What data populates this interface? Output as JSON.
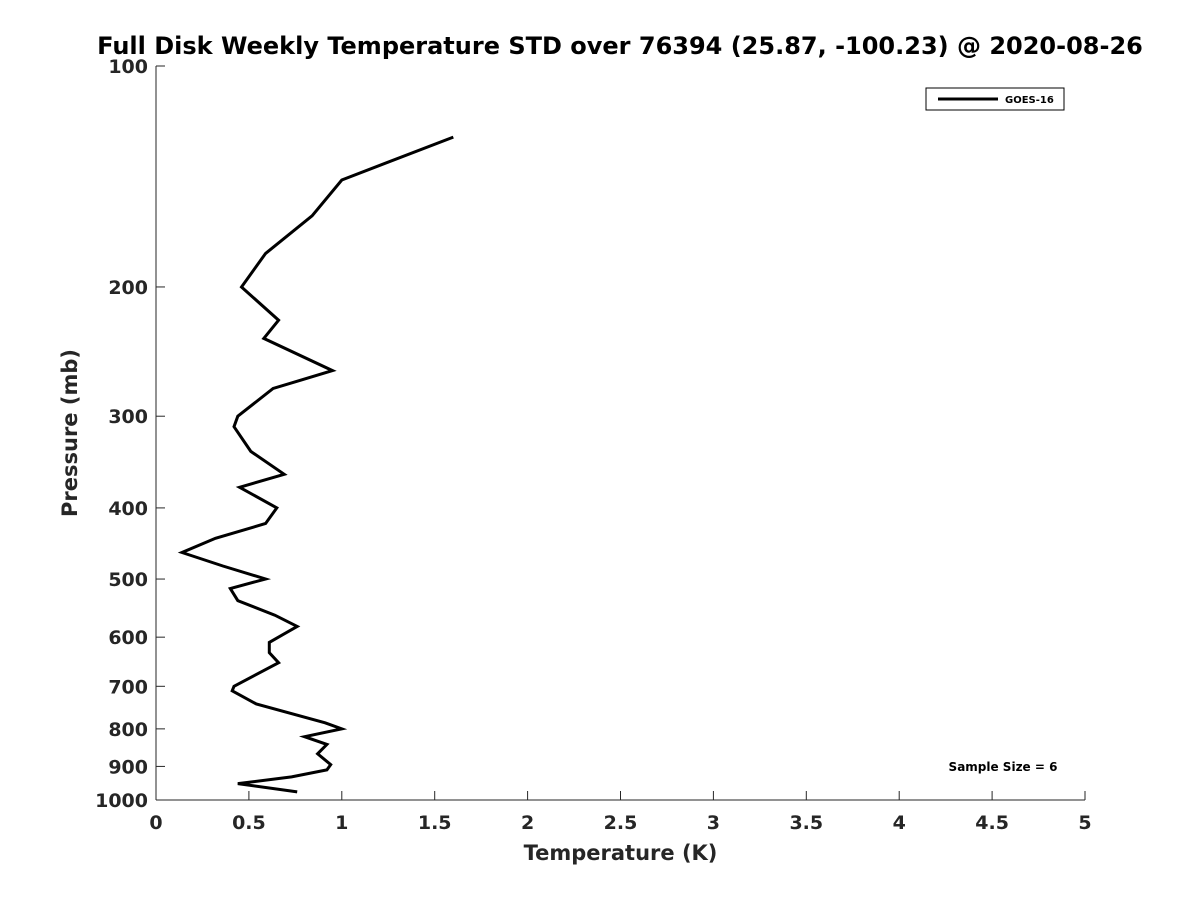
{
  "chart_data": {
    "type": "line",
    "title": "Full Disk Weekly Temperature STD over 76394 (25.87, -100.23) @ 2020-08-26",
    "xlabel": "Temperature (K)",
    "ylabel": "Pressure (mb)",
    "xlim": [
      0,
      5
    ],
    "ylim": [
      1000,
      100
    ],
    "yscale": "log",
    "y_reversed": true,
    "grid": false,
    "legend_position": "top-right",
    "x_ticks": [
      "0",
      "0.5",
      "1",
      "1.5",
      "2",
      "2.5",
      "3",
      "3.5",
      "4",
      "4.5",
      "5"
    ],
    "y_ticks": [
      "100",
      "200",
      "300",
      "400",
      "500",
      "600",
      "700",
      "800",
      "900",
      "1000"
    ],
    "series": [
      {
        "name": "GOES-16",
        "color": "#000000",
        "points": [
          {
            "x": 1.6,
            "y": 125
          },
          {
            "x": 1.0,
            "y": 143
          },
          {
            "x": 0.84,
            "y": 160
          },
          {
            "x": 0.59,
            "y": 180
          },
          {
            "x": 0.46,
            "y": 200
          },
          {
            "x": 0.66,
            "y": 222
          },
          {
            "x": 0.58,
            "y": 235
          },
          {
            "x": 0.95,
            "y": 260
          },
          {
            "x": 0.63,
            "y": 275
          },
          {
            "x": 0.44,
            "y": 300
          },
          {
            "x": 0.42,
            "y": 310
          },
          {
            "x": 0.51,
            "y": 335
          },
          {
            "x": 0.69,
            "y": 360
          },
          {
            "x": 0.45,
            "y": 375
          },
          {
            "x": 0.65,
            "y": 400
          },
          {
            "x": 0.59,
            "y": 420
          },
          {
            "x": 0.32,
            "y": 440
          },
          {
            "x": 0.14,
            "y": 460
          },
          {
            "x": 0.36,
            "y": 480
          },
          {
            "x": 0.59,
            "y": 500
          },
          {
            "x": 0.4,
            "y": 515
          },
          {
            "x": 0.44,
            "y": 535
          },
          {
            "x": 0.64,
            "y": 560
          },
          {
            "x": 0.76,
            "y": 580
          },
          {
            "x": 0.61,
            "y": 610
          },
          {
            "x": 0.61,
            "y": 630
          },
          {
            "x": 0.66,
            "y": 650
          },
          {
            "x": 0.42,
            "y": 700
          },
          {
            "x": 0.41,
            "y": 710
          },
          {
            "x": 0.54,
            "y": 740
          },
          {
            "x": 0.91,
            "y": 785
          },
          {
            "x": 1.0,
            "y": 800
          },
          {
            "x": 0.8,
            "y": 820
          },
          {
            "x": 0.92,
            "y": 840
          },
          {
            "x": 0.87,
            "y": 865
          },
          {
            "x": 0.94,
            "y": 895
          },
          {
            "x": 0.92,
            "y": 910
          },
          {
            "x": 0.73,
            "y": 930
          },
          {
            "x": 0.44,
            "y": 950
          },
          {
            "x": 0.76,
            "y": 975
          }
        ]
      }
    ],
    "annotations": [
      "Sample Size = 6"
    ]
  }
}
